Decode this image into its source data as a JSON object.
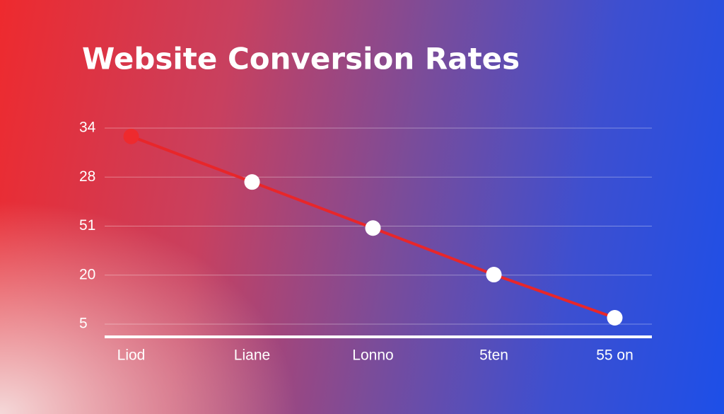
{
  "chart_data": {
    "type": "line",
    "title": "Website Conversion Rates",
    "categories": [
      "Liod",
      "Liane",
      "Lonno",
      "5ten",
      "55 on"
    ],
    "values": [
      3.83,
      2.9,
      1.96,
      1.01,
      0.13
    ],
    "color": "#e8262a",
    "point_colors": [
      "#ee2a2e",
      "#ffffff",
      "#ffffff",
      "#ffffff",
      "#ffffff"
    ],
    "ylim": [
      -0.26,
      4
    ],
    "yticks": [
      {
        "value": 4,
        "label": "34"
      },
      {
        "value": 3,
        "label": "28"
      },
      {
        "value": 2,
        "label": "51"
      },
      {
        "value": 1,
        "label": "20"
      },
      {
        "value": 0,
        "label": "5"
      }
    ],
    "grid": true
  }
}
